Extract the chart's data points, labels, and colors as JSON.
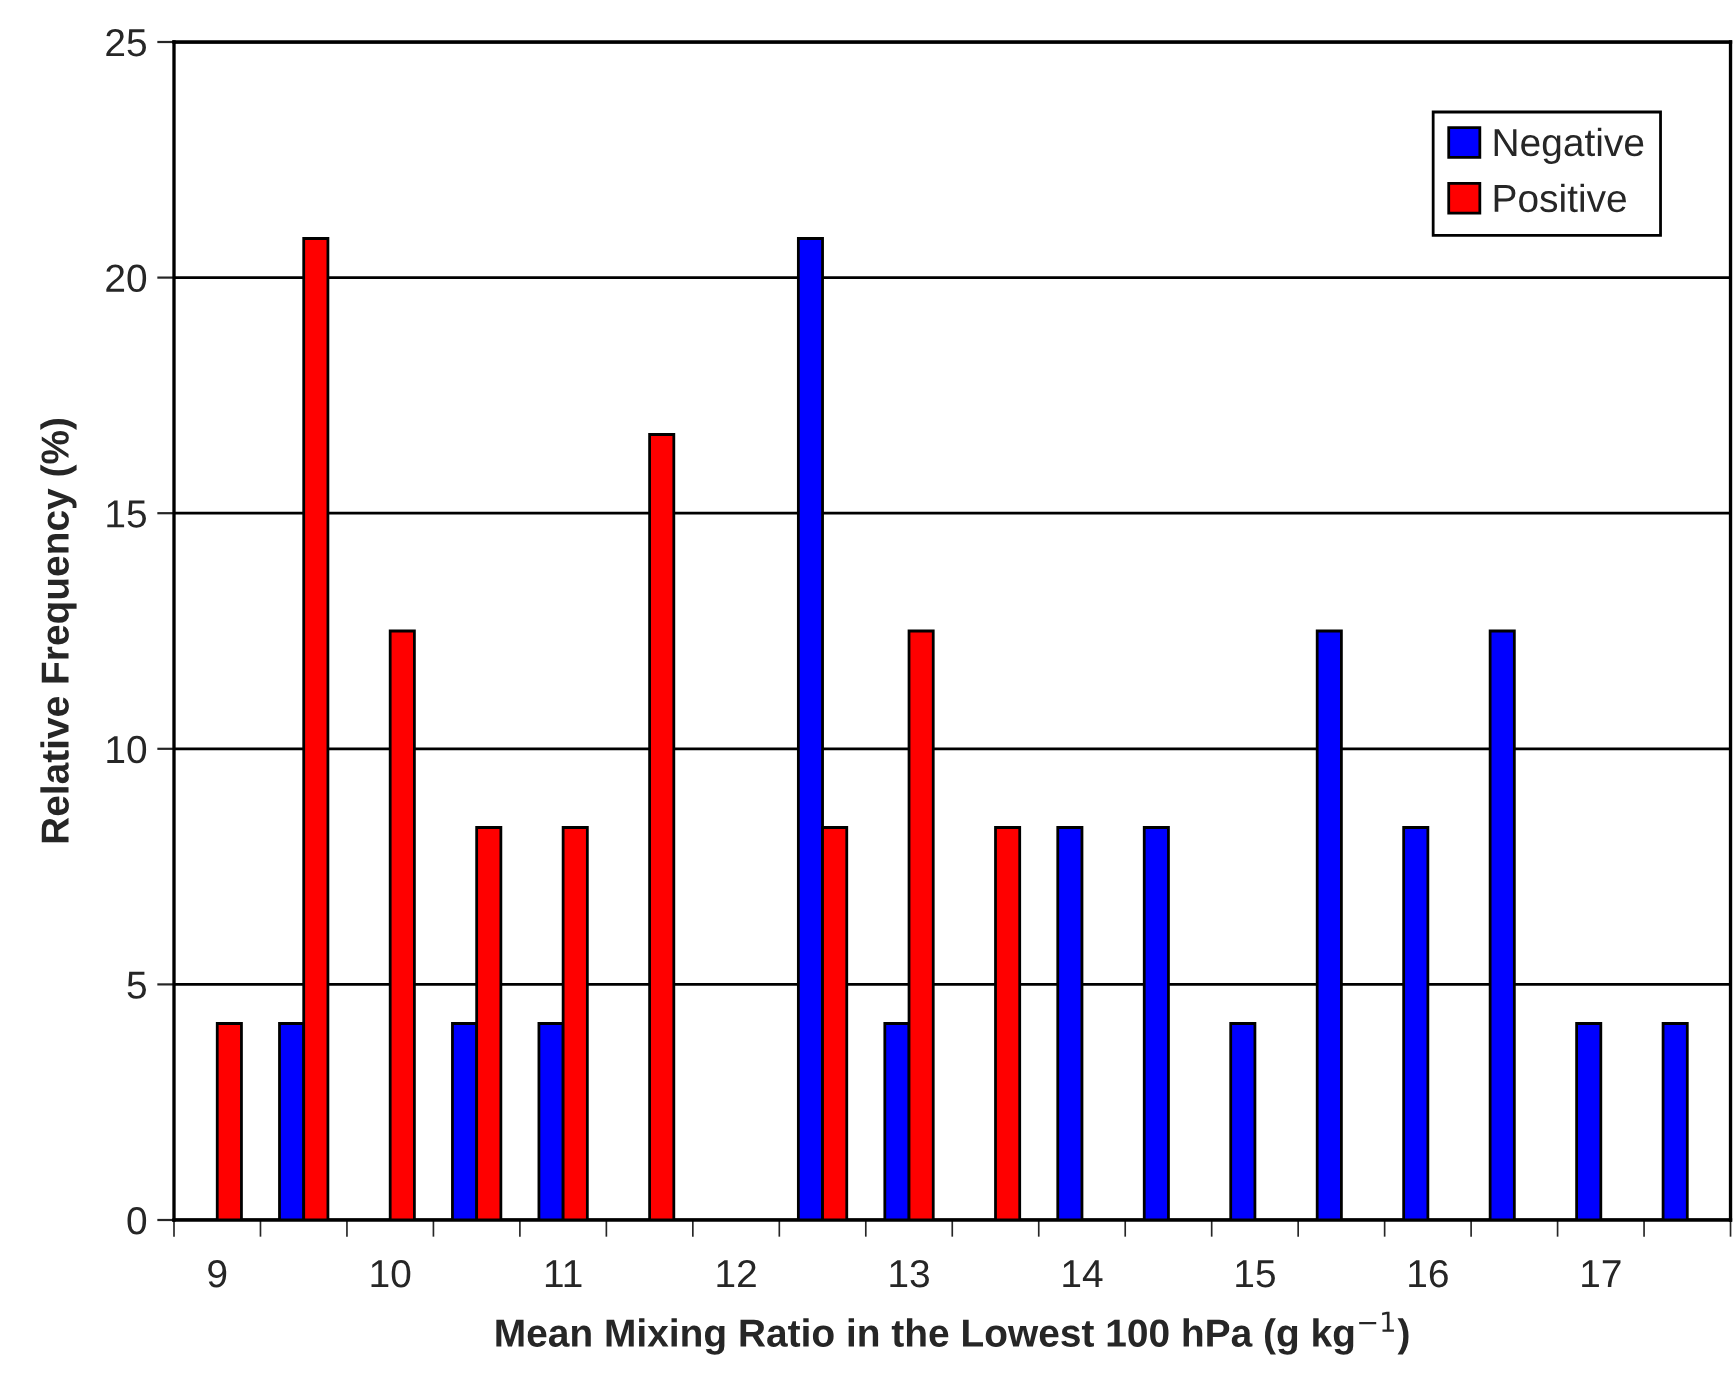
{
  "chart_data": {
    "type": "bar",
    "xlabel": "Mean Mixing Ratio in the Lowest 100 hPa (g kg$^{−1}$)",
    "ylabel": "Relative Frequency (%)",
    "categories": [
      "9",
      null,
      "10",
      null,
      "11",
      null,
      "12",
      null,
      "13",
      null,
      "14",
      null,
      "15",
      null,
      "16",
      null,
      "17",
      null
    ],
    "series": [
      {
        "name": "Negative",
        "color": "#0000ff",
        "values": [
          null,
          4.17,
          null,
          4.17,
          4.17,
          null,
          null,
          20.83,
          4.17,
          null,
          8.33,
          8.33,
          4.17,
          12.5,
          8.33,
          12.5,
          4.17,
          4.17
        ]
      },
      {
        "name": "Positive",
        "color": "#ff0000",
        "values": [
          4.17,
          20.83,
          12.5,
          8.33,
          8.33,
          16.67,
          null,
          8.33,
          12.5,
          8.33,
          null,
          null,
          null,
          null,
          null,
          null,
          null,
          null
        ]
      }
    ],
    "ylim": [
      0,
      25
    ],
    "yticks": [
      0,
      5,
      10,
      15,
      20,
      25
    ],
    "grid": "y",
    "legend": "top right"
  }
}
